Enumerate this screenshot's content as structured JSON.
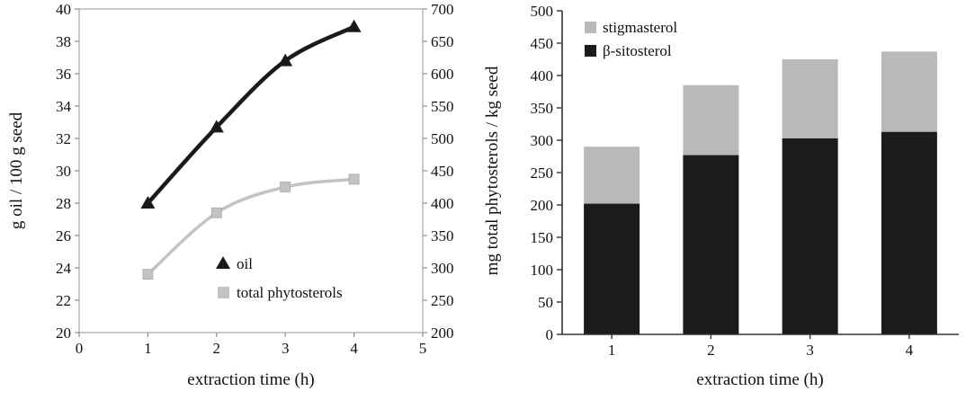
{
  "chart_data": [
    {
      "type": "line",
      "title": "",
      "xlabel": "extraction time (h)",
      "ylabel_left": "g oil / 100 g seed",
      "ylabel_right": "mg  total phytosterols / kg seed",
      "xlim": [
        0,
        5
      ],
      "xticks": [
        0,
        1,
        2,
        3,
        4,
        5
      ],
      "ylim_left": [
        20,
        40
      ],
      "yticks_left": [
        20,
        22,
        24,
        26,
        28,
        30,
        32,
        34,
        36,
        38,
        40
      ],
      "ylim_right": [
        200,
        700
      ],
      "yticks_right": [
        200,
        250,
        300,
        350,
        400,
        450,
        500,
        550,
        600,
        650,
        700
      ],
      "grid": false,
      "legend_position": "inside-bottom-center",
      "series": [
        {
          "name": "oil",
          "axis": "left",
          "marker": "triangle",
          "color": "#1a1a1a",
          "x": [
            1,
            2,
            3,
            4
          ],
          "values": [
            28.0,
            32.7,
            36.8,
            38.9
          ]
        },
        {
          "name": "total phytosterols",
          "axis": "right",
          "marker": "square",
          "color": "#c3c3c3",
          "x": [
            1,
            2,
            3,
            4
          ],
          "values": [
            290,
            385,
            425,
            437
          ]
        }
      ]
    },
    {
      "type": "bar",
      "stacked": true,
      "title": "",
      "xlabel": "extraction time (h)",
      "ylabel": "",
      "categories": [
        "1",
        "2",
        "3",
        "4"
      ],
      "ylim": [
        0,
        500
      ],
      "yticks": [
        0,
        50,
        100,
        150,
        200,
        250,
        300,
        350,
        400,
        450,
        500
      ],
      "grid": false,
      "legend_position": "inside-top-left",
      "legend_order": [
        "stigmasterol",
        "β-sitosterol"
      ],
      "series": [
        {
          "name": "β-sitosterol",
          "color": "#1b1b1b",
          "values": [
            202,
            277,
            303,
            313
          ]
        },
        {
          "name": "stigmasterol",
          "color": "#b9b9b9",
          "values": [
            88,
            108,
            122,
            124
          ]
        }
      ]
    }
  ]
}
